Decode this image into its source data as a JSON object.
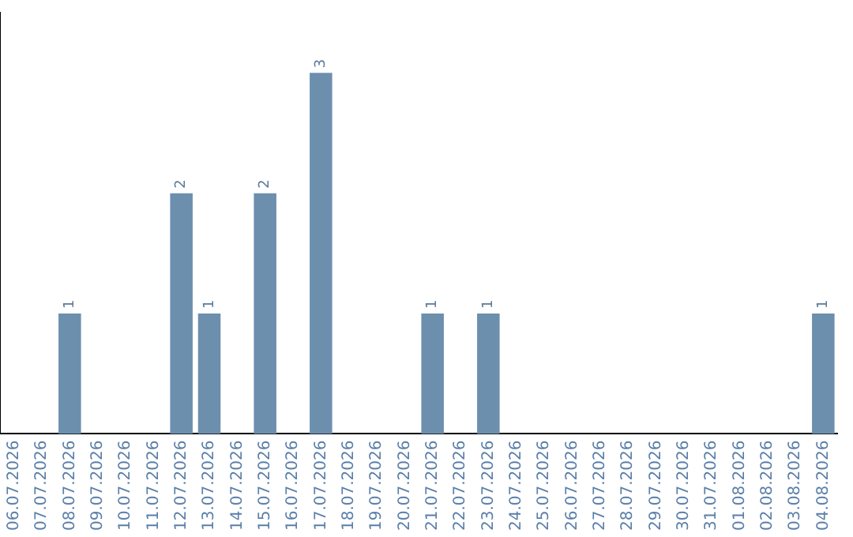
{
  "chart_data": {
    "type": "bar",
    "categories": [
      "06.07.2026",
      "07.07.2026",
      "08.07.2026",
      "09.07.2026",
      "10.07.2026",
      "11.07.2026",
      "12.07.2026",
      "13.07.2026",
      "14.07.2026",
      "15.07.2026",
      "16.07.2026",
      "17.07.2026",
      "18.07.2026",
      "19.07.2026",
      "20.07.2026",
      "21.07.2026",
      "22.07.2026",
      "23.07.2026",
      "24.07.2026",
      "25.07.2026",
      "26.07.2026",
      "27.07.2026",
      "28.07.2026",
      "29.07.2026",
      "30.07.2026",
      "31.07.2026",
      "01.08.2026",
      "02.08.2026",
      "03.08.2026",
      "04.08.2026"
    ],
    "values": [
      0,
      0,
      1,
      0,
      0,
      0,
      2,
      1,
      0,
      2,
      0,
      3,
      0,
      0,
      0,
      1,
      0,
      1,
      0,
      0,
      0,
      0,
      0,
      0,
      0,
      0,
      0,
      0,
      0,
      1
    ],
    "value_labels": [
      null,
      null,
      "1",
      null,
      null,
      null,
      "2",
      "1",
      null,
      "2",
      null,
      "3",
      null,
      null,
      null,
      "1",
      null,
      "1",
      null,
      null,
      null,
      null,
      null,
      null,
      null,
      null,
      null,
      null,
      null,
      "1"
    ],
    "color": "#6d8fae",
    "grid": false,
    "legend": false,
    "tick_labels": "x"
  }
}
